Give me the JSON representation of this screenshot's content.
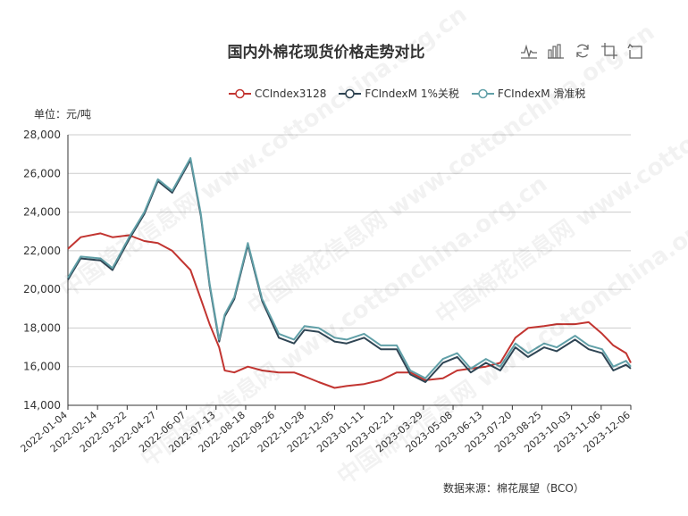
{
  "title": "国内外棉花现货价格走势对比",
  "unit_label": "单位：元/吨",
  "source_label": "数据来源：棉花展望（BCO）",
  "watermark": "中国棉花信息网 www.cottonchina.org.cn",
  "toolbar": [
    "line-chart-icon",
    "bar-chart-icon",
    "refresh-icon",
    "crop-icon",
    "restore-icon"
  ],
  "colors": {
    "cc": "#c23531",
    "fc1": "#2f4554",
    "fcs": "#61a0a8",
    "axis": "#333333",
    "grid": "#cccccc"
  },
  "chart_data": {
    "type": "line",
    "title": "国内外棉花现货价格走势对比",
    "ylabel": "单位：元/吨",
    "xlabel": "",
    "ylim": [
      14000,
      28000
    ],
    "y_ticks": [
      "14,000",
      "16,000",
      "18,000",
      "20,000",
      "22,000",
      "24,000",
      "26,000",
      "28,000"
    ],
    "y_tick_values": [
      14000,
      16000,
      18000,
      20000,
      22000,
      24000,
      26000,
      28000
    ],
    "x_tick_labels": [
      "2022-01-04",
      "2022-02-14",
      "2022-03-22",
      "2022-04-27",
      "2022-06-07",
      "2022-07-13",
      "2022-08-18",
      "2022-09-26",
      "2022-10-28",
      "2022-12-05",
      "2023-01-11",
      "2023-02-21",
      "2023-03-29",
      "2023-05-08",
      "2023-06-13",
      "2023-07-20",
      "2023-08-25",
      "2023-10-03",
      "2023-11-06",
      "2023-12-06"
    ],
    "grid": true,
    "legend_position": "top",
    "series": [
      {
        "name": "CCIndex3128",
        "color": "#c23531",
        "x": [
          "2022-01-04",
          "2022-01-20",
          "2022-02-14",
          "2022-03-01",
          "2022-03-22",
          "2022-04-10",
          "2022-04-27",
          "2022-05-15",
          "2022-06-07",
          "2022-06-20",
          "2022-07-01",
          "2022-07-13",
          "2022-07-20",
          "2022-08-01",
          "2022-08-18",
          "2022-09-05",
          "2022-09-26",
          "2022-10-15",
          "2022-10-28",
          "2022-11-15",
          "2022-12-05",
          "2022-12-20",
          "2023-01-11",
          "2023-02-01",
          "2023-02-21",
          "2023-03-10",
          "2023-03-29",
          "2023-04-20",
          "2023-05-08",
          "2023-05-25",
          "2023-06-13",
          "2023-07-01",
          "2023-07-20",
          "2023-08-05",
          "2023-08-25",
          "2023-09-10",
          "2023-10-03",
          "2023-10-20",
          "2023-11-06",
          "2023-11-20",
          "2023-12-06",
          "2023-12-12"
        ],
        "values": [
          22100,
          22700,
          22900,
          22700,
          22800,
          22500,
          22400,
          22000,
          21000,
          19500,
          18200,
          17000,
          15800,
          15700,
          16000,
          15800,
          15700,
          15700,
          15500,
          15200,
          14900,
          15000,
          15100,
          15300,
          15700,
          15700,
          15300,
          15400,
          15800,
          15900,
          16000,
          16200,
          17500,
          18000,
          18100,
          18200,
          18200,
          18300,
          17700,
          17100,
          16700,
          16200
        ]
      },
      {
        "name": "FCIndexM 1%关税",
        "color": "#2f4554",
        "x": [
          "2022-01-04",
          "2022-01-20",
          "2022-02-14",
          "2022-03-01",
          "2022-03-22",
          "2022-04-10",
          "2022-04-27",
          "2022-05-15",
          "2022-06-07",
          "2022-06-20",
          "2022-07-01",
          "2022-07-13",
          "2022-07-20",
          "2022-08-01",
          "2022-08-18",
          "2022-09-05",
          "2022-09-26",
          "2022-10-15",
          "2022-10-28",
          "2022-11-15",
          "2022-12-05",
          "2022-12-20",
          "2023-01-11",
          "2023-02-01",
          "2023-02-21",
          "2023-03-10",
          "2023-03-29",
          "2023-04-20",
          "2023-05-08",
          "2023-05-25",
          "2023-06-13",
          "2023-07-01",
          "2023-07-20",
          "2023-08-05",
          "2023-08-25",
          "2023-09-10",
          "2023-10-03",
          "2023-10-20",
          "2023-11-06",
          "2023-11-20",
          "2023-12-06",
          "2023-12-12"
        ],
        "values": [
          20500,
          21600,
          21500,
          21000,
          22600,
          23900,
          25600,
          25000,
          26700,
          23800,
          20200,
          17300,
          18600,
          19500,
          22300,
          19400,
          17500,
          17200,
          17900,
          17800,
          17300,
          17200,
          17500,
          16900,
          16900,
          15600,
          15200,
          16200,
          16500,
          15700,
          16200,
          15800,
          17000,
          16500,
          17000,
          16800,
          17400,
          16900,
          16700,
          15800,
          16100,
          15900
        ]
      },
      {
        "name": "FCIndexM 滑准税",
        "color": "#61a0a8",
        "x": [
          "2022-01-04",
          "2022-01-20",
          "2022-02-14",
          "2022-03-01",
          "2022-03-22",
          "2022-04-10",
          "2022-04-27",
          "2022-05-15",
          "2022-06-07",
          "2022-06-20",
          "2022-07-01",
          "2022-07-13",
          "2022-07-20",
          "2022-08-01",
          "2022-08-18",
          "2022-09-05",
          "2022-09-26",
          "2022-10-15",
          "2022-10-28",
          "2022-11-15",
          "2022-12-05",
          "2022-12-20",
          "2023-01-11",
          "2023-02-01",
          "2023-02-21",
          "2023-03-10",
          "2023-03-29",
          "2023-04-20",
          "2023-05-08",
          "2023-05-25",
          "2023-06-13",
          "2023-07-01",
          "2023-07-20",
          "2023-08-05",
          "2023-08-25",
          "2023-09-10",
          "2023-10-03",
          "2023-10-20",
          "2023-11-06",
          "2023-11-20",
          "2023-12-06",
          "2023-12-12"
        ],
        "values": [
          20600,
          21700,
          21600,
          21100,
          22700,
          24000,
          25700,
          25100,
          26800,
          23900,
          20300,
          17400,
          18700,
          19600,
          22400,
          19500,
          17700,
          17400,
          18100,
          18000,
          17500,
          17400,
          17700,
          17100,
          17100,
          15800,
          15400,
          16400,
          16700,
          15900,
          16400,
          16000,
          17200,
          16700,
          17200,
          17000,
          17600,
          17100,
          16900,
          16000,
          16300,
          16000
        ]
      }
    ]
  }
}
